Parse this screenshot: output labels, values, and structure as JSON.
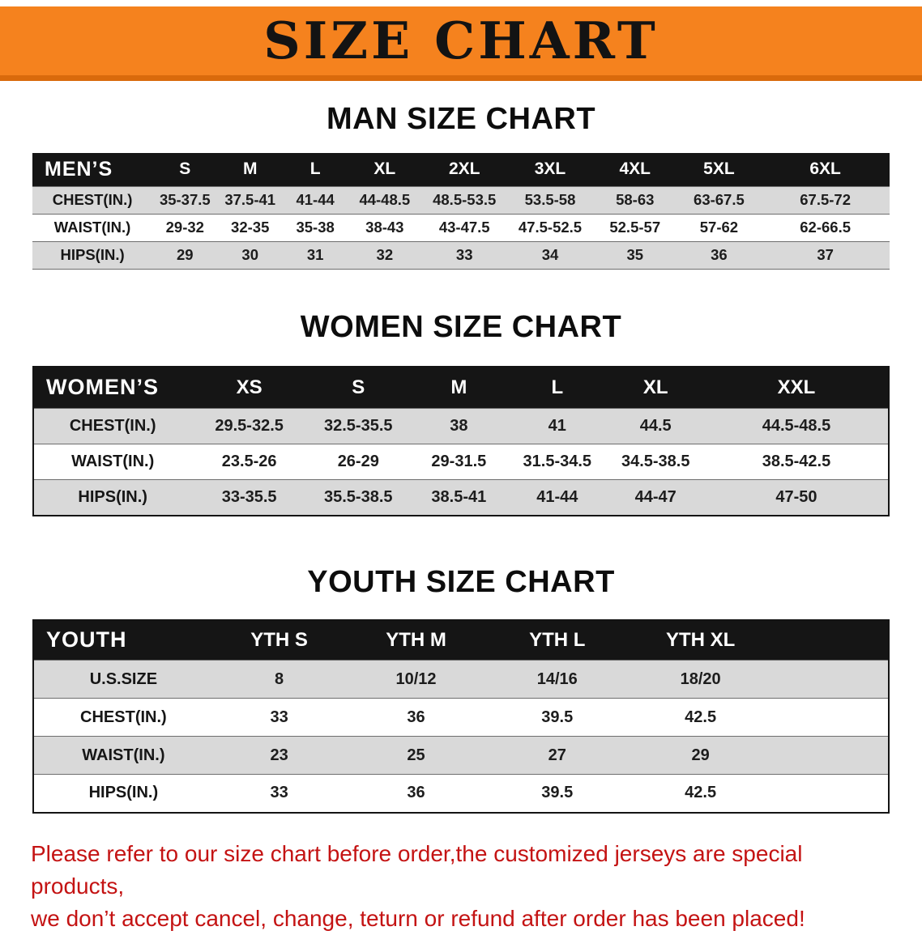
{
  "theme": {
    "banner_orange": "#f5821e",
    "banner_orange_dark": "#d96a0c",
    "header_black": "#151515",
    "stripe_gray": "#d9d9d9",
    "footer_red": "#c41313"
  },
  "banner": {
    "title": "SIZE CHART"
  },
  "men": {
    "heading": "MAN SIZE CHART",
    "table": {
      "header": [
        "MEN’S",
        "S",
        "M",
        "L",
        "XL",
        "2XL",
        "3XL",
        "4XL",
        "5XL",
        "6XL"
      ],
      "rows": [
        {
          "label": "CHEST(IN.)",
          "values": [
            "35-37.5",
            "37.5-41",
            "41-44",
            "44-48.5",
            "48.5-53.5",
            "53.5-58",
            "58-63",
            "63-67.5",
            "67.5-72"
          ]
        },
        {
          "label": "WAIST(IN.)",
          "values": [
            "29-32",
            "32-35",
            "35-38",
            "38-43",
            "43-47.5",
            "47.5-52.5",
            "52.5-57",
            "57-62",
            "62-66.5"
          ]
        },
        {
          "label": "HIPS(IN.)",
          "values": [
            "29",
            "30",
            "31",
            "32",
            "33",
            "34",
            "35",
            "36",
            "37"
          ]
        }
      ]
    }
  },
  "women": {
    "heading": "WOMEN SIZE CHART",
    "table": {
      "header": [
        "WOMEN’S",
        "XS",
        "S",
        "M",
        "L",
        "XL",
        "XXL"
      ],
      "rows": [
        {
          "label": "CHEST(IN.)",
          "values": [
            "29.5-32.5",
            "32.5-35.5",
            "38",
            "41",
            "44.5",
            "44.5-48.5"
          ]
        },
        {
          "label": "WAIST(IN.)",
          "values": [
            "23.5-26",
            "26-29",
            "29-31.5",
            "31.5-34.5",
            "34.5-38.5",
            "38.5-42.5"
          ]
        },
        {
          "label": "HIPS(IN.)",
          "values": [
            "33-35.5",
            "35.5-38.5",
            "38.5-41",
            "41-44",
            "44-47",
            "47-50"
          ]
        }
      ]
    }
  },
  "youth": {
    "heading": "YOUTH SIZE CHART",
    "table": {
      "header": [
        "YOUTH",
        "YTH S",
        "YTH M",
        "YTH L",
        "YTH XL"
      ],
      "rows": [
        {
          "label": "U.S.SIZE",
          "values": [
            "8",
            "10/12",
            "14/16",
            "18/20"
          ]
        },
        {
          "label": "CHEST(IN.)",
          "values": [
            "33",
            "36",
            "39.5",
            "42.5"
          ]
        },
        {
          "label": "WAIST(IN.)",
          "values": [
            "23",
            "25",
            "27",
            "29"
          ]
        },
        {
          "label": "HIPS(IN.)",
          "values": [
            "33",
            "36",
            "39.5",
            "42.5"
          ]
        }
      ]
    }
  },
  "footer": {
    "line1": "Please refer to our size chart before order,the customized jerseys are special products,",
    "line2": "we don’t accept cancel, change, teturn or refund after order has been placed!"
  }
}
